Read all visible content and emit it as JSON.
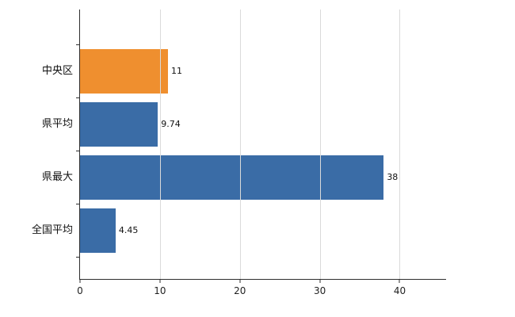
{
  "chart_data": {
    "type": "bar",
    "orientation": "horizontal",
    "title": "",
    "xlabel": "",
    "ylabel": "",
    "categories": [
      "中央区",
      "県平均",
      "県最大",
      "全国平均"
    ],
    "values": [
      11,
      9.74,
      38,
      4.45
    ],
    "value_labels": [
      "11",
      "9.74",
      "38",
      "4.45"
    ],
    "bar_colors": [
      "#ef8f2f",
      "#3a6ca6",
      "#3a6ca6",
      "#3a6ca6"
    ],
    "colors": {
      "default_bar": "#3a6ca6",
      "highlight_bar": "#ef8f2f",
      "gridline": "#dadada",
      "axis": "#2e2e2e",
      "text": "#111111",
      "background": "#ffffff"
    },
    "xlim": [
      0,
      45.8
    ],
    "x_ticks": [
      0,
      10,
      20,
      30,
      40
    ],
    "grid": true,
    "legend": false
  }
}
